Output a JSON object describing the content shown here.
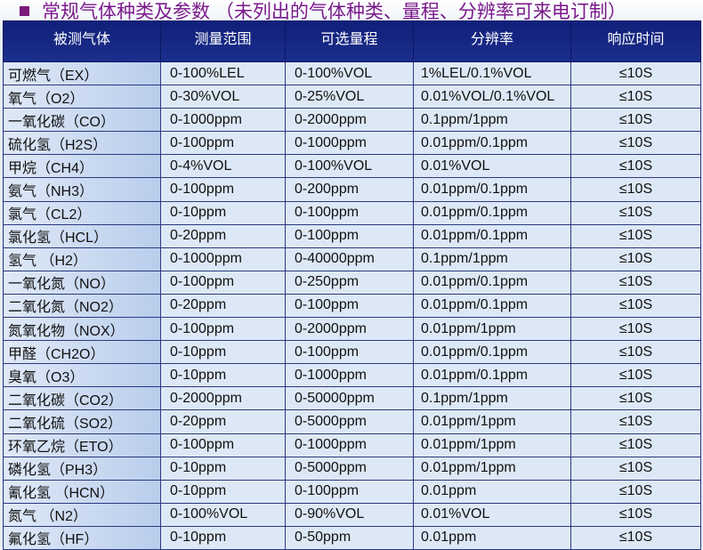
{
  "title": "常规气体种类及参数 （未列出的气体种类、量程、分辨率可来电订制）",
  "colors": {
    "title": "#7a1a8a",
    "header_bg": "#10207a",
    "cell_bg": "#dde8f6"
  },
  "headers": [
    "被测气体",
    "测量范围",
    "可选量程",
    "分辨率",
    "响应时间"
  ],
  "rows": [
    [
      "可燃气（EX）",
      "0-100%LEL",
      "0-100%VOL",
      "1%LEL/0.1%VOL",
      "≤10S"
    ],
    [
      "氧气（O2）",
      "0-30%VOL",
      "0-25%VOL",
      "0.01%VOL/0.1%VOL",
      "≤10S"
    ],
    [
      "一氧化碳（CO）",
      "0-1000ppm",
      "0-2000ppm",
      "0.1ppm/1ppm",
      "≤10S"
    ],
    [
      "硫化氢（H2S）",
      "0-100ppm",
      "0-1000ppm",
      "0.01ppm/0.1ppm",
      "≤10S"
    ],
    [
      "甲烷（CH4）",
      "0-4%VOL",
      "0-100%VOL",
      "0.01%VOL",
      "≤10S"
    ],
    [
      "氨气（NH3）",
      "0-100ppm",
      "0-200ppm",
      "0.01ppm/0.1ppm",
      "≤10S"
    ],
    [
      "氯气（CL2）",
      "0-10ppm",
      "0-100ppm",
      "0.01ppm/0.1ppm",
      "≤10S"
    ],
    [
      "氯化氢（HCL）",
      "0-20ppm",
      "0-100ppm",
      "0.01ppm/0.1ppm",
      "≤10S"
    ],
    [
      "氢气 （H2）",
      "0-1000ppm",
      "0-40000ppm",
      "0.1ppm/1ppm",
      "≤10S"
    ],
    [
      "一氧化氮（NO）",
      "0-100ppm",
      "0-250ppm",
      "0.01ppm/0.1ppm",
      "≤10S"
    ],
    [
      "二氧化氮（NO2）",
      "0-20ppm",
      "0-100ppm",
      "0.01ppm/0.1ppm",
      "≤10S"
    ],
    [
      "氮氧化物（NOX）",
      "0-100ppm",
      "0-2000ppm",
      "0.01ppm/1ppm",
      "≤10S"
    ],
    [
      "甲醛（CH2O）",
      "0-10ppm",
      "0-100ppm",
      "0.01ppm/0.1ppm",
      "≤10S"
    ],
    [
      "臭氧（O3）",
      "0-10ppm",
      "0-1000ppm",
      "0.01ppm/0.1ppm",
      "≤10S"
    ],
    [
      "二氧化碳（CO2）",
      "0-2000ppm",
      "0-50000ppm",
      "0.1ppm/1ppm",
      "≤10S"
    ],
    [
      "二氧化硫（SO2）",
      "0-20ppm",
      "0-5000ppm",
      "0.01ppm/1ppm",
      "≤10S"
    ],
    [
      "环氧乙烷（ETO）",
      "0-100ppm",
      "0-1000ppm",
      "0.01ppm/1ppm",
      "≤10S"
    ],
    [
      "磷化氢（PH3）",
      "0-10ppm",
      "0-5000ppm",
      "0.01ppm/1ppm",
      "≤10S"
    ],
    [
      "氰化氢 （HCN）",
      "0-10ppm",
      "0-100ppm",
      "0.01ppm",
      "≤10S"
    ],
    [
      "氮气 （N2）",
      "0-100%VOL",
      "0-90%VOL",
      "0.01%VOL",
      "≤10S"
    ],
    [
      "氟化氢（HF）",
      "0-10ppm",
      "0-50ppm",
      "0.01ppm",
      "≤10S"
    ]
  ]
}
